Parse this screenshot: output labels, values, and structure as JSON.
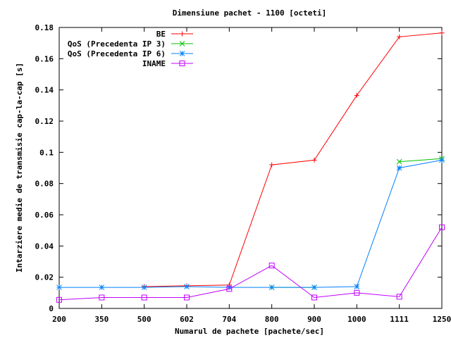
{
  "chart_data": {
    "type": "line",
    "title": "Dimensiune pachet - 1100 [octeti]",
    "xlabel": "Numarul de pachete [pachete/sec]",
    "ylabel": "Intarziere medie de transmisie cap-la-cap [s]",
    "categories": [
      "200",
      "350",
      "500",
      "602",
      "704",
      "800",
      "900",
      "1000",
      "1111",
      "1250"
    ],
    "ylim": [
      0,
      0.18
    ],
    "yticks": [
      "0",
      "0.02",
      "0.04",
      "0.06",
      "0.08",
      "0.1",
      "0.12",
      "0.14",
      "0.16",
      "0.18"
    ],
    "grid": false,
    "legend_position": "top-right",
    "series": [
      {
        "name": "BE",
        "color": "#ff0000",
        "marker": "plus",
        "values": [
          null,
          null,
          0.014,
          0.0145,
          0.015,
          0.092,
          0.095,
          0.1365,
          0.174,
          0.1765
        ]
      },
      {
        "name": "QoS (Precedenta IP 3)",
        "color": "#00c000",
        "marker": "cross",
        "values": [
          null,
          null,
          null,
          null,
          null,
          0.0135,
          0.0135,
          null,
          0.094,
          0.096
        ]
      },
      {
        "name": "QoS (Precedenta IP 6)",
        "color": "#0080ff",
        "marker": "star",
        "values": [
          0.0135,
          0.0135,
          0.0135,
          0.014,
          0.0135,
          0.0135,
          0.0135,
          0.014,
          0.09,
          0.095
        ]
      },
      {
        "name": "INAME",
        "color": "#c000ff",
        "marker": "square",
        "values": [
          0.0055,
          0.007,
          0.007,
          0.007,
          0.0125,
          0.0275,
          0.007,
          0.01,
          0.0075,
          0.052
        ]
      }
    ]
  }
}
